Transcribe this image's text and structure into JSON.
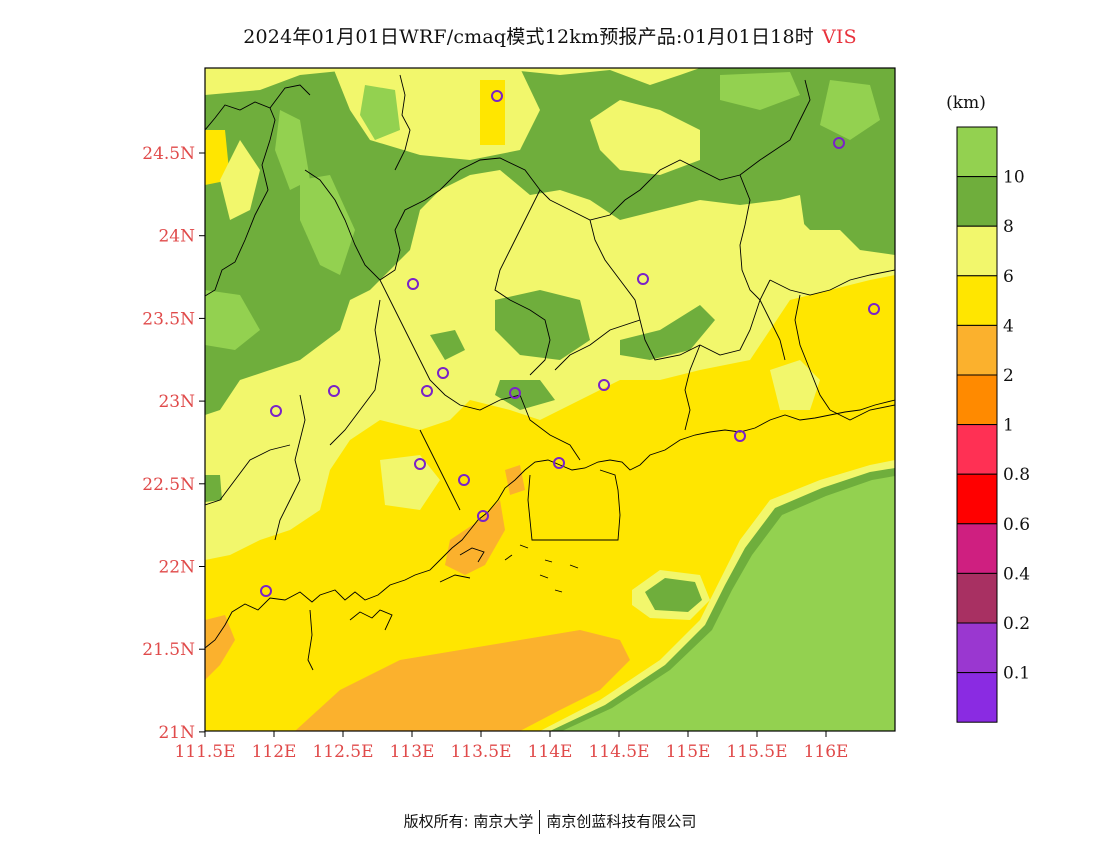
{
  "title": {
    "text": "2024年01月01日WRF/cmaq模式12km预报产品:01月01日18时",
    "variable": "VIS"
  },
  "map": {
    "lat_labels": [
      "24.5N",
      "24N",
      "23.5N",
      "23N",
      "22.5N",
      "22N",
      "21.5N",
      "21N"
    ],
    "lon_labels": [
      "111.5E",
      "112E",
      "112.5E",
      "113E",
      "113.5E",
      "114E",
      "114.5E",
      "115E",
      "115.5E",
      "116E"
    ],
    "station_color": "#7a22c8"
  },
  "legend": {
    "unit": "(km)",
    "colors": [
      "#93d150",
      "#6fae3c",
      "#f2f76c",
      "#ffe600",
      "#fbb12d",
      "#ff8a00",
      "#ff3054",
      "#ff0000",
      "#cf1f80",
      "#a83062",
      "#9a37d0",
      "#8a2be2"
    ],
    "labels": [
      "10",
      "8",
      "6",
      "4",
      "2",
      "1",
      "0.8",
      "0.6",
      "0.4",
      "0.2",
      "0.1"
    ]
  },
  "footer": {
    "left": "版权所有: 南京大学",
    "right": "南京创蓝科技有限公司"
  }
}
